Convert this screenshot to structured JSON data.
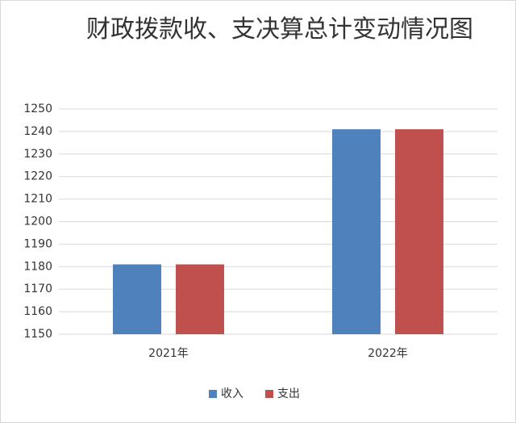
{
  "chart_data": {
    "type": "bar",
    "title": "财政拨款收、支决算总计变动情况图",
    "categories": [
      "2021年",
      "2022年"
    ],
    "series": [
      {
        "name": "收入",
        "color": "#4f81bd",
        "values": [
          1181,
          1241
        ]
      },
      {
        "name": "支出",
        "color": "#c0504d",
        "values": [
          1181,
          1241
        ]
      }
    ],
    "ylim": [
      1150,
      1250
    ],
    "yticks": [
      1150,
      1160,
      1170,
      1180,
      1190,
      1200,
      1210,
      1220,
      1230,
      1240,
      1250
    ],
    "grid": true,
    "legend": "bottom"
  }
}
